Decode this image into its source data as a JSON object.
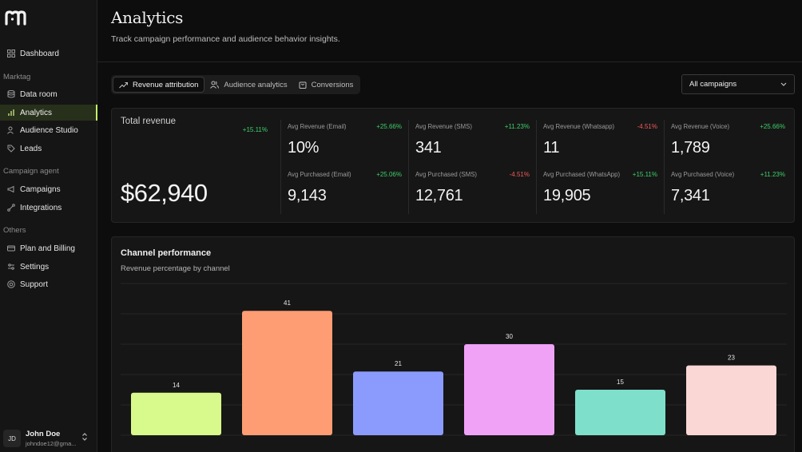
{
  "sidebar": {
    "items": [
      {
        "label": "Dashboard",
        "icon": "grid-icon"
      },
      {
        "label": "Data room",
        "icon": "database-icon"
      },
      {
        "label": "Analytics",
        "icon": "bar-chart-icon",
        "active": true
      },
      {
        "label": "Audience Studio",
        "icon": "users-icon"
      },
      {
        "label": "Leads",
        "icon": "tag-icon"
      },
      {
        "label": "Campaigns",
        "icon": "megaphone-icon"
      },
      {
        "label": "Integrations",
        "icon": "plug-icon"
      },
      {
        "label": "Plan and Billing",
        "icon": "credit-card-icon"
      },
      {
        "label": "Settings",
        "icon": "sliders-icon"
      },
      {
        "label": "Support",
        "icon": "help-circle-icon"
      }
    ],
    "sections": [
      "Marktag",
      "Campaign agent",
      "Others"
    ],
    "user": {
      "initials": "JD",
      "name": "John Doe",
      "email": "johndoe12@gma..."
    }
  },
  "header": {
    "title": "Analytics",
    "subtitle": "Track campaign performance and audience behavior insights."
  },
  "tabs": [
    {
      "label": "Revenue attribution",
      "icon": "trending-up-icon",
      "active": true
    },
    {
      "label": "Audience analytics",
      "icon": "users-icon"
    },
    {
      "label": "Conversions",
      "icon": "shopping-bag-icon"
    }
  ],
  "filter": {
    "selected": "All campaigns"
  },
  "stats": {
    "total": {
      "label": "Total revenue",
      "change": "+15.11%",
      "value": "$62,940"
    },
    "metrics": [
      {
        "label": "Avg Revenue (Email)",
        "change": "+25.66%",
        "value": "10%",
        "trend": "pos"
      },
      {
        "label": "Avg Purchased (Email)",
        "change": "+25.06%",
        "value": "9,143",
        "trend": "pos"
      },
      {
        "label": "Avg Revenue (SMS)",
        "change": "+11.23%",
        "value": "341",
        "trend": "pos"
      },
      {
        "label": "Avg Purchased (SMS)",
        "change": "-4.51%",
        "value": "12,761",
        "trend": "neg"
      },
      {
        "label": "Avg Revenue (Whatsapp)",
        "change": "-4.51%",
        "value": "11",
        "trend": "neg"
      },
      {
        "label": "Avg Purchased (WhatsApp)",
        "change": "+15.11%",
        "value": "19,905",
        "trend": "pos"
      },
      {
        "label": "Avg Revenue (Voice)",
        "change": "+25.66%",
        "value": "1,789",
        "trend": "pos"
      },
      {
        "label": "Avg Purchased (Voice)",
        "change": "+11.23%",
        "value": "7,341",
        "trend": "pos"
      }
    ]
  },
  "chart_card": {
    "title": "Channel performance",
    "subtitle": "Revenue percentage by channel"
  },
  "chart_data": {
    "type": "bar",
    "title": "Channel performance",
    "subtitle": "Revenue percentage by channel",
    "values": [
      14,
      41,
      21,
      30,
      15,
      23
    ],
    "colors": [
      "#d8f98b",
      "#fe9c74",
      "#8b9bfd",
      "#f0a2f7",
      "#7edfca",
      "#fad7d5"
    ],
    "ylim": [
      0,
      50
    ],
    "grid": true
  },
  "colors": {
    "accent": "#c4f06a",
    "positive": "#3ecf6a",
    "negative": "#ef5b5b"
  }
}
